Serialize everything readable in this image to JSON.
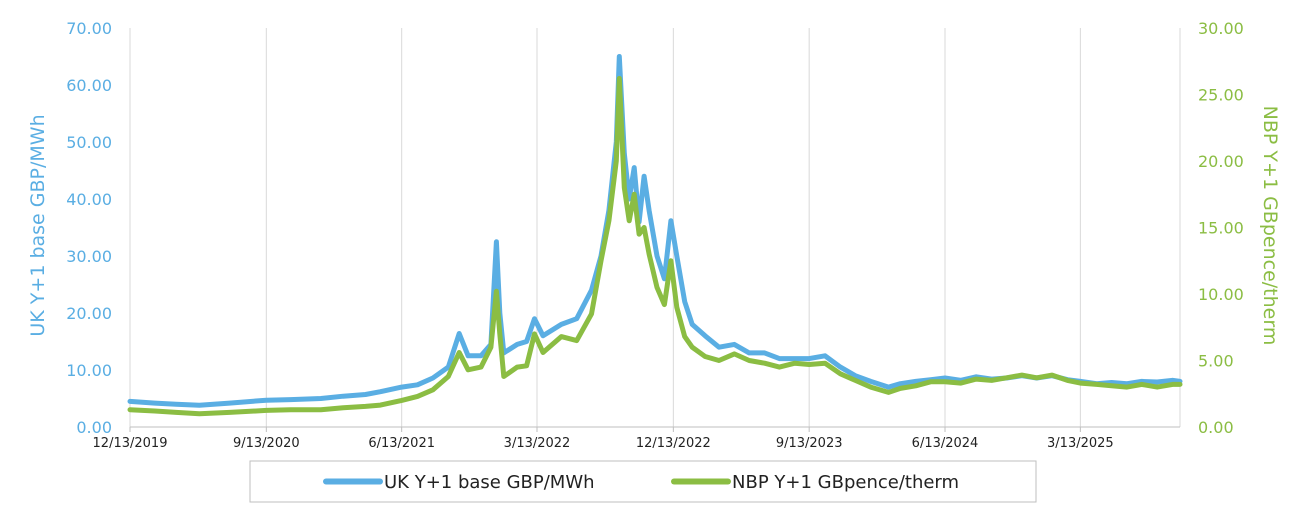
{
  "chart_data": {
    "type": "line",
    "title": "",
    "xlabel": "",
    "x_tick_labels": [
      "12/13/2019",
      "9/13/2020",
      "6/13/2021",
      "3/13/2022",
      "12/13/2022",
      "9/13/2023",
      "6/13/2024",
      "3/13/2025"
    ],
    "x_range": [
      "2019-12-13",
      "2025-09-30"
    ],
    "left_axis": {
      "label": "UK Y+1 base GBP/MWh",
      "range": [
        0,
        70
      ],
      "tick_labels": [
        "0.00",
        "10.00",
        "20.00",
        "30.00",
        "40.00",
        "50.00",
        "60.00",
        "70.00"
      ]
    },
    "right_axis": {
      "label": "NBP Y+1 GBpence/therm",
      "range": [
        0,
        30
      ],
      "tick_labels": [
        "0.00",
        "5.00",
        "10.00",
        "15.00",
        "20.00",
        "25.00",
        "30.00"
      ]
    },
    "grid": "vertical",
    "legend_position": "bottom",
    "series": [
      {
        "name": "UK Y+1 base GBP/MWh",
        "axis": "left",
        "color": "#5aaee3",
        "points": [
          [
            "2019-12-13",
            4.5
          ],
          [
            "2020-02-01",
            4.2
          ],
          [
            "2020-03-15",
            4.0
          ],
          [
            "2020-05-01",
            3.8
          ],
          [
            "2020-07-01",
            4.2
          ],
          [
            "2020-09-13",
            4.7
          ],
          [
            "2020-11-01",
            4.8
          ],
          [
            "2021-01-01",
            5.0
          ],
          [
            "2021-02-15",
            5.4
          ],
          [
            "2021-04-01",
            5.7
          ],
          [
            "2021-05-01",
            6.2
          ],
          [
            "2021-06-13",
            7.0
          ],
          [
            "2021-07-15",
            7.4
          ],
          [
            "2021-08-15",
            8.6
          ],
          [
            "2021-09-15",
            10.5
          ],
          [
            "2021-10-07",
            16.4
          ],
          [
            "2021-10-25",
            12.5
          ],
          [
            "2021-11-20",
            12.5
          ],
          [
            "2021-12-10",
            14.5
          ],
          [
            "2021-12-21",
            32.5
          ],
          [
            "2021-12-28",
            20.0
          ],
          [
            "2022-01-05",
            13.0
          ],
          [
            "2022-02-01",
            14.5
          ],
          [
            "2022-02-20",
            15.0
          ],
          [
            "2022-03-08",
            19.0
          ],
          [
            "2022-03-25",
            16.0
          ],
          [
            "2022-05-01",
            18.0
          ],
          [
            "2022-06-01",
            19.0
          ],
          [
            "2022-07-01",
            24.0
          ],
          [
            "2022-07-20",
            30.0
          ],
          [
            "2022-08-05",
            38.0
          ],
          [
            "2022-08-20",
            50.0
          ],
          [
            "2022-08-26",
            65.0
          ],
          [
            "2022-09-05",
            48.0
          ],
          [
            "2022-09-15",
            40.0
          ],
          [
            "2022-09-25",
            45.5
          ],
          [
            "2022-10-05",
            36.0
          ],
          [
            "2022-10-15",
            44.0
          ],
          [
            "2022-10-25",
            38.0
          ],
          [
            "2022-11-10",
            30.0
          ],
          [
            "2022-11-25",
            26.0
          ],
          [
            "2022-12-08",
            36.2
          ],
          [
            "2022-12-20",
            30.0
          ],
          [
            "2023-01-05",
            22.0
          ],
          [
            "2023-01-20",
            18.0
          ],
          [
            "2023-02-15",
            16.0
          ],
          [
            "2023-03-15",
            14.0
          ],
          [
            "2023-04-15",
            14.5
          ],
          [
            "2023-05-15",
            13.0
          ],
          [
            "2023-06-15",
            13.0
          ],
          [
            "2023-07-15",
            12.0
          ],
          [
            "2023-08-15",
            12.0
          ],
          [
            "2023-09-13",
            12.0
          ],
          [
            "2023-10-15",
            12.5
          ],
          [
            "2023-11-15",
            10.5
          ],
          [
            "2023-12-15",
            9.0
          ],
          [
            "2024-01-15",
            8.0
          ],
          [
            "2024-02-20",
            7.0
          ],
          [
            "2024-03-15",
            7.6
          ],
          [
            "2024-04-15",
            8.0
          ],
          [
            "2024-05-15",
            8.3
          ],
          [
            "2024-06-13",
            8.6
          ],
          [
            "2024-07-15",
            8.2
          ],
          [
            "2024-08-15",
            8.8
          ],
          [
            "2024-09-15",
            8.4
          ],
          [
            "2024-10-15",
            8.6
          ],
          [
            "2024-11-15",
            9.0
          ],
          [
            "2024-12-15",
            8.6
          ],
          [
            "2025-01-15",
            9.0
          ],
          [
            "2025-02-15",
            8.3
          ],
          [
            "2025-03-13",
            8.0
          ],
          [
            "2025-04-15",
            7.6
          ],
          [
            "2025-05-15",
            7.8
          ],
          [
            "2025-06-15",
            7.6
          ],
          [
            "2025-07-15",
            8.0
          ],
          [
            "2025-08-15",
            7.9
          ],
          [
            "2025-09-15",
            8.2
          ],
          [
            "2025-09-30",
            8.0
          ]
        ]
      },
      {
        "name": "NBP Y+1 GBpence/therm",
        "axis": "right",
        "color": "#8bbd43",
        "points": [
          [
            "2019-12-13",
            1.3
          ],
          [
            "2020-02-01",
            1.2
          ],
          [
            "2020-03-15",
            1.1
          ],
          [
            "2020-05-01",
            1.0
          ],
          [
            "2020-07-01",
            1.1
          ],
          [
            "2020-09-13",
            1.25
          ],
          [
            "2020-11-01",
            1.3
          ],
          [
            "2021-01-01",
            1.3
          ],
          [
            "2021-02-15",
            1.45
          ],
          [
            "2021-04-01",
            1.55
          ],
          [
            "2021-05-01",
            1.65
          ],
          [
            "2021-06-13",
            2.0
          ],
          [
            "2021-07-15",
            2.3
          ],
          [
            "2021-08-15",
            2.8
          ],
          [
            "2021-09-15",
            3.8
          ],
          [
            "2021-10-07",
            5.6
          ],
          [
            "2021-10-25",
            4.3
          ],
          [
            "2021-11-20",
            4.5
          ],
          [
            "2021-12-10",
            6.0
          ],
          [
            "2021-12-21",
            10.2
          ],
          [
            "2021-12-28",
            7.0
          ],
          [
            "2022-01-05",
            3.8
          ],
          [
            "2022-02-01",
            4.5
          ],
          [
            "2022-02-20",
            4.6
          ],
          [
            "2022-03-08",
            7.0
          ],
          [
            "2022-03-25",
            5.6
          ],
          [
            "2022-05-01",
            6.8
          ],
          [
            "2022-06-01",
            6.5
          ],
          [
            "2022-07-01",
            8.5
          ],
          [
            "2022-07-20",
            12.5
          ],
          [
            "2022-08-05",
            15.5
          ],
          [
            "2022-08-20",
            20.0
          ],
          [
            "2022-08-26",
            26.2
          ],
          [
            "2022-09-05",
            18.0
          ],
          [
            "2022-09-15",
            15.5
          ],
          [
            "2022-09-25",
            17.5
          ],
          [
            "2022-10-05",
            14.5
          ],
          [
            "2022-10-15",
            15.0
          ],
          [
            "2022-10-25",
            13.0
          ],
          [
            "2022-11-10",
            10.5
          ],
          [
            "2022-11-25",
            9.2
          ],
          [
            "2022-12-08",
            12.5
          ],
          [
            "2022-12-20",
            9.0
          ],
          [
            "2023-01-05",
            6.8
          ],
          [
            "2023-01-20",
            6.0
          ],
          [
            "2023-02-15",
            5.3
          ],
          [
            "2023-03-15",
            5.0
          ],
          [
            "2023-04-15",
            5.5
          ],
          [
            "2023-05-15",
            5.0
          ],
          [
            "2023-06-15",
            4.8
          ],
          [
            "2023-07-15",
            4.5
          ],
          [
            "2023-08-15",
            4.8
          ],
          [
            "2023-09-13",
            4.7
          ],
          [
            "2023-10-15",
            4.8
          ],
          [
            "2023-11-15",
            4.0
          ],
          [
            "2023-12-15",
            3.5
          ],
          [
            "2024-01-15",
            3.0
          ],
          [
            "2024-02-20",
            2.6
          ],
          [
            "2024-03-15",
            2.9
          ],
          [
            "2024-04-15",
            3.1
          ],
          [
            "2024-05-15",
            3.4
          ],
          [
            "2024-06-13",
            3.4
          ],
          [
            "2024-07-15",
            3.3
          ],
          [
            "2024-08-15",
            3.6
          ],
          [
            "2024-09-15",
            3.5
          ],
          [
            "2024-10-15",
            3.7
          ],
          [
            "2024-11-15",
            3.9
          ],
          [
            "2024-12-15",
            3.7
          ],
          [
            "2025-01-15",
            3.9
          ],
          [
            "2025-02-15",
            3.5
          ],
          [
            "2025-03-13",
            3.3
          ],
          [
            "2025-04-15",
            3.2
          ],
          [
            "2025-05-15",
            3.1
          ],
          [
            "2025-06-15",
            3.0
          ],
          [
            "2025-07-15",
            3.2
          ],
          [
            "2025-08-15",
            3.0
          ],
          [
            "2025-09-15",
            3.2
          ],
          [
            "2025-09-30",
            3.2
          ]
        ]
      }
    ]
  }
}
